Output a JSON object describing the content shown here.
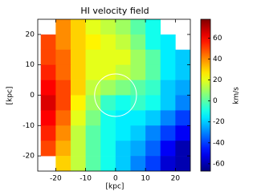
{
  "chart_data": {
    "type": "heatmap",
    "title": "HI velocity field",
    "xlabel": "[kpc]",
    "ylabel": "[kpc]",
    "colorbar_label": "km/s",
    "xlim": [
      -26,
      25
    ],
    "ylim": [
      -25,
      25
    ],
    "xticks": [
      -20,
      -10,
      0,
      10,
      20
    ],
    "yticks": [
      -20,
      -10,
      0,
      10,
      20
    ],
    "x_edges": [
      -25,
      -20,
      -15,
      -10,
      -5,
      0,
      5,
      10,
      15,
      20,
      25
    ],
    "y_edges": [
      25,
      20,
      15,
      10,
      5,
      0,
      -5,
      -10,
      -15,
      -20,
      -25
    ],
    "z": [
      [
        null,
        40,
        30,
        20,
        15,
        10,
        0,
        -10,
        null,
        null
      ],
      [
        50,
        40,
        30,
        25,
        20,
        15,
        5,
        -10,
        -15,
        null
      ],
      [
        50,
        45,
        30,
        20,
        20,
        20,
        10,
        0,
        -15,
        -20
      ],
      [
        55,
        45,
        30,
        20,
        20,
        15,
        10,
        0,
        -15,
        -20
      ],
      [
        60,
        50,
        30,
        15,
        10,
        5,
        0,
        -5,
        -20,
        -25
      ],
      [
        65,
        50,
        25,
        10,
        -5,
        -10,
        -5,
        -10,
        -20,
        -30
      ],
      [
        60,
        45,
        20,
        5,
        -10,
        -15,
        -15,
        -20,
        -30,
        -40
      ],
      [
        55,
        40,
        15,
        0,
        -10,
        -15,
        -20,
        -30,
        -40,
        -50
      ],
      [
        50,
        35,
        15,
        0,
        -10,
        -20,
        -25,
        -35,
        -50,
        -60
      ],
      [
        null,
        30,
        15,
        0,
        -10,
        -20,
        -30,
        -40,
        -55,
        -60
      ]
    ],
    "colormap": "jet",
    "clim": [
      -67,
      78
    ],
    "cticks": [
      -60,
      -40,
      -20,
      0,
      20,
      40,
      60
    ],
    "circle": {
      "x": 0,
      "y": 0,
      "r": 7,
      "color": "#ffffff"
    }
  }
}
